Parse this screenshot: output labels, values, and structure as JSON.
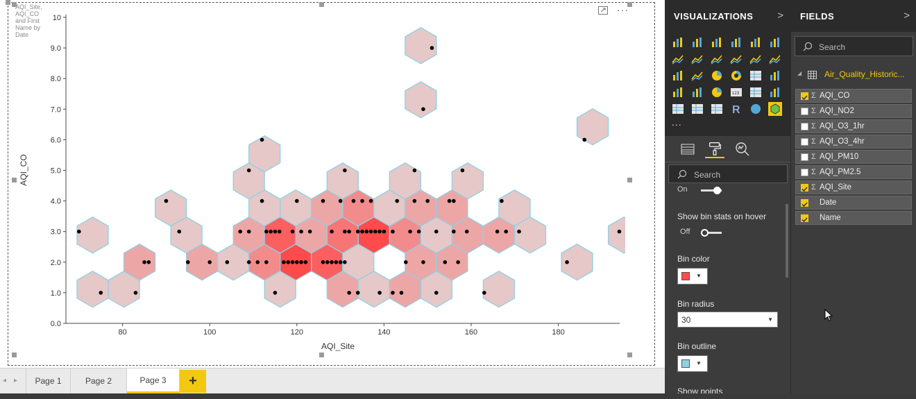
{
  "visual": {
    "title": "AQI_Site, AQI_CO and First Name by Date"
  },
  "chart_data": {
    "type": "scatter",
    "subtype": "hexbin",
    "xlabel": "AQI_Site",
    "ylabel": "AQI_CO",
    "xlim": [
      67,
      196
    ],
    "ylim": [
      0,
      10
    ],
    "x_ticks": [
      "80",
      "100",
      "120",
      "140",
      "160",
      "180"
    ],
    "x_tick_values": [
      80,
      100,
      120,
      140,
      160,
      180
    ],
    "y_ticks": [
      "0.0",
      "1.0",
      "2.0",
      "3.0",
      "4.0",
      "5.0",
      "6.0",
      "7.0",
      "8.0",
      "9.0",
      "10"
    ],
    "y_tick_values": [
      0,
      1,
      2,
      3,
      4,
      5,
      6,
      7,
      8,
      9,
      10
    ],
    "bin_color": "#ff4b4b",
    "bin_outline_color": "#8fd0e6",
    "points": [
      [
        70,
        3
      ],
      [
        75,
        1
      ],
      [
        83,
        1
      ],
      [
        85,
        2
      ],
      [
        86,
        2
      ],
      [
        90,
        4
      ],
      [
        93,
        3
      ],
      [
        95,
        2
      ],
      [
        100,
        2
      ],
      [
        104,
        2
      ],
      [
        107,
        3
      ],
      [
        109,
        3
      ],
      [
        109,
        2
      ],
      [
        109,
        5
      ],
      [
        111,
        2
      ],
      [
        112,
        6
      ],
      [
        112,
        4
      ],
      [
        113,
        3
      ],
      [
        113,
        2
      ],
      [
        114,
        3
      ],
      [
        115,
        3
      ],
      [
        115,
        1
      ],
      [
        116,
        3
      ],
      [
        117,
        2
      ],
      [
        118,
        2
      ],
      [
        119,
        2
      ],
      [
        119,
        3
      ],
      [
        120,
        2
      ],
      [
        120,
        4
      ],
      [
        121,
        2
      ],
      [
        121,
        3
      ],
      [
        122,
        2
      ],
      [
        123,
        3
      ],
      [
        126,
        2
      ],
      [
        126,
        4
      ],
      [
        127,
        2
      ],
      [
        128,
        2
      ],
      [
        128,
        3
      ],
      [
        129,
        2
      ],
      [
        130,
        2
      ],
      [
        130,
        4
      ],
      [
        131,
        5
      ],
      [
        131,
        3
      ],
      [
        131,
        2
      ],
      [
        132,
        3
      ],
      [
        132,
        1
      ],
      [
        133,
        4
      ],
      [
        134,
        1
      ],
      [
        134,
        3
      ],
      [
        135,
        3
      ],
      [
        135,
        4
      ],
      [
        136,
        3
      ],
      [
        137,
        4
      ],
      [
        137,
        3
      ],
      [
        138,
        3
      ],
      [
        139,
        3
      ],
      [
        140,
        3
      ],
      [
        139,
        1
      ],
      [
        142,
        3
      ],
      [
        142,
        1
      ],
      [
        143,
        4
      ],
      [
        144,
        1
      ],
      [
        145,
        2
      ],
      [
        146,
        3
      ],
      [
        147,
        4
      ],
      [
        147,
        5
      ],
      [
        148,
        3
      ],
      [
        149,
        2
      ],
      [
        149,
        7
      ],
      [
        150,
        4
      ],
      [
        151,
        9
      ],
      [
        152,
        1
      ],
      [
        152,
        3
      ],
      [
        154,
        2
      ],
      [
        155,
        4
      ],
      [
        156,
        3
      ],
      [
        156,
        4
      ],
      [
        157,
        2
      ],
      [
        158,
        5
      ],
      [
        159,
        3
      ],
      [
        163,
        1
      ],
      [
        166,
        3
      ],
      [
        167,
        4
      ],
      [
        168,
        3
      ],
      [
        171,
        3
      ],
      [
        182,
        2
      ],
      [
        186,
        6
      ],
      [
        194,
        3
      ]
    ]
  },
  "pages": {
    "tabs": [
      "Page 1",
      "Page 2",
      "Page 3"
    ],
    "active": "Page 3",
    "add_label": "+"
  },
  "visualizations": {
    "title": "VISUALIZATIONS",
    "more": "...",
    "icons": [
      "stacked-bar-icon",
      "stacked-column-icon",
      "clustered-bar-icon",
      "clustered-column-icon",
      "100-bar-icon",
      "100-column-icon",
      "line-icon",
      "area-icon",
      "stacked-area-icon",
      "line-column-icon",
      "line-clustered-column-icon",
      "ribbon-icon",
      "waterfall-icon",
      "scatter-icon",
      "pie-icon",
      "donut-icon",
      "treemap-icon",
      "map-icon",
      "filled-map-icon",
      "funnel-icon",
      "gauge-icon",
      "card-icon",
      "multirow-card-icon",
      "kpi-icon",
      "slicer-icon",
      "table-icon",
      "matrix-icon",
      "r-visual-icon",
      "globe-icon",
      "hexbin-icon"
    ],
    "format": {
      "search_placeholder": "Search",
      "prev_toggle_state": "On",
      "bin_stats_label": "Show bin stats on hover",
      "bin_stats_state": "Off",
      "bin_color_label": "Bin color",
      "bin_color": "#ff4b4b",
      "bin_radius_label": "Bin radius",
      "bin_radius_value": "30",
      "bin_outline_label": "Bin outline",
      "bin_outline_color": "#8fd0e6",
      "show_points_label": "Show points"
    }
  },
  "fields": {
    "title": "FIELDS",
    "search_placeholder": "Search",
    "table_name": "Air_Quality_Historic...",
    "items": [
      {
        "name": "AQI_CO",
        "checked": true,
        "sigma": true
      },
      {
        "name": "AQI_NO2",
        "checked": false,
        "sigma": true
      },
      {
        "name": "AQI_O3_1hr",
        "checked": false,
        "sigma": true
      },
      {
        "name": "AQI_O3_4hr",
        "checked": false,
        "sigma": true
      },
      {
        "name": "AQI_PM10",
        "checked": false,
        "sigma": true
      },
      {
        "name": "AQI_PM2.5",
        "checked": false,
        "sigma": true
      },
      {
        "name": "AQI_Site",
        "checked": true,
        "sigma": true
      },
      {
        "name": "Date",
        "checked": true,
        "sigma": false
      },
      {
        "name": "Name",
        "checked": true,
        "sigma": false
      }
    ]
  }
}
